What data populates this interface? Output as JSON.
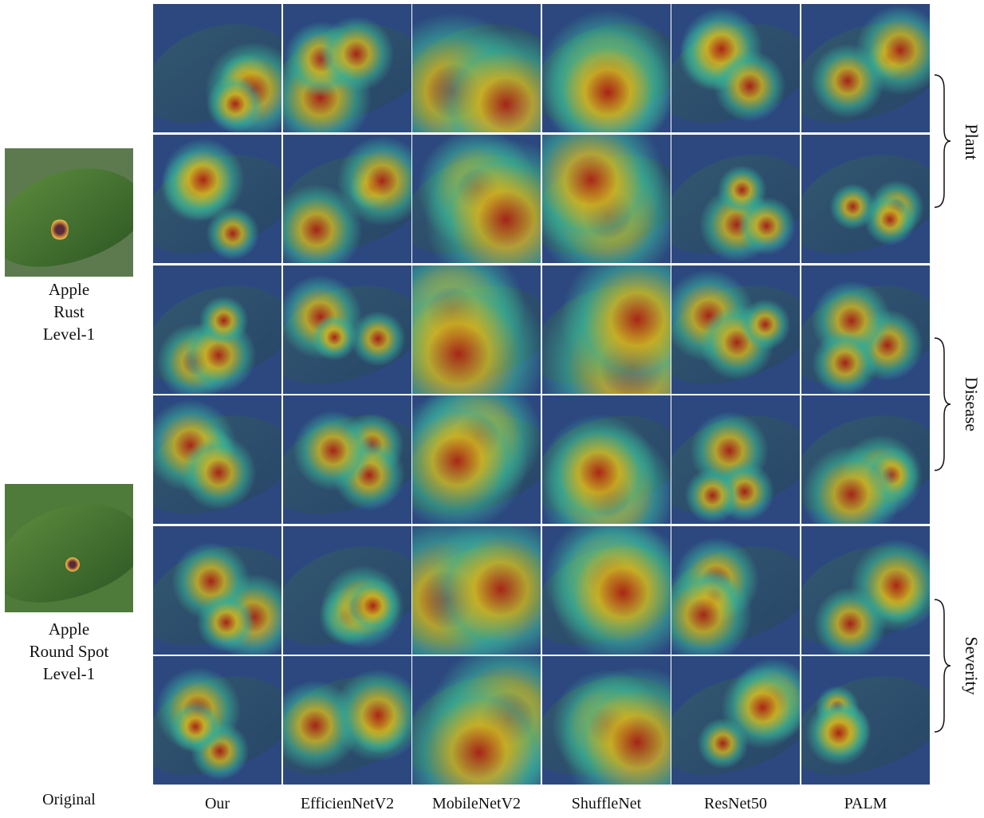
{
  "originals": [
    {
      "name": "Apple",
      "disease": "Rust",
      "level": "Level-1"
    },
    {
      "name": "Apple",
      "disease": "Round Spot",
      "level": "Level-1"
    }
  ],
  "original_label": "Original",
  "columns": [
    "Our",
    "EfficienNetV2",
    "MobileNetV2",
    "ShuffleNet",
    "ResNet50",
    "PALM"
  ],
  "groups": [
    "Plant",
    "Disease",
    "Severity"
  ]
}
